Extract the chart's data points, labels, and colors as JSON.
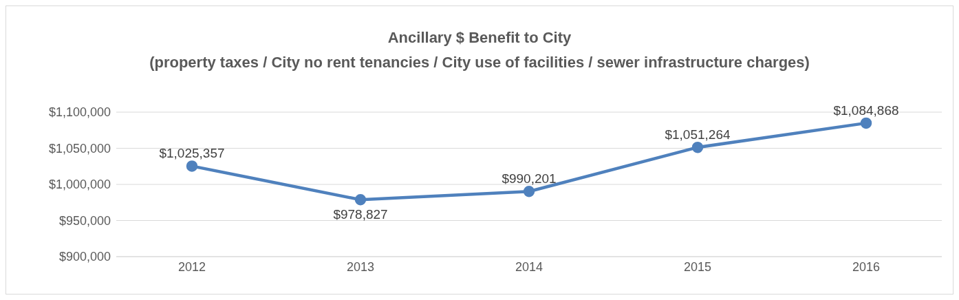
{
  "chart_data": {
    "type": "line",
    "title": "Ancillary $ Benefit to City",
    "subtitle": "(property taxes / City no rent tenancies / City use of facilities / sewer infrastructure charges)",
    "categories": [
      "2012",
      "2013",
      "2014",
      "2015",
      "2016"
    ],
    "series": [
      {
        "color": "#4f81bd",
        "values": [
          1025357,
          978827,
          990201,
          1051264,
          1084868
        ],
        "value_labels": [
          "$1,025,357",
          "$978,827",
          "$990,201",
          "$1,051,264",
          "$1,084,868"
        ]
      }
    ],
    "ylim": [
      900000,
      1100000
    ],
    "yticks": [
      {
        "value": 900000,
        "label": "$900,000"
      },
      {
        "value": 950000,
        "label": "$950,000"
      },
      {
        "value": 1000000,
        "label": "$1,000,000"
      },
      {
        "value": 1050000,
        "label": "$1,050,000"
      },
      {
        "value": 1100000,
        "label": "$1,100,000"
      }
    ],
    "grid": "y",
    "legend": false,
    "marker": "circle",
    "line_style": "solid"
  }
}
